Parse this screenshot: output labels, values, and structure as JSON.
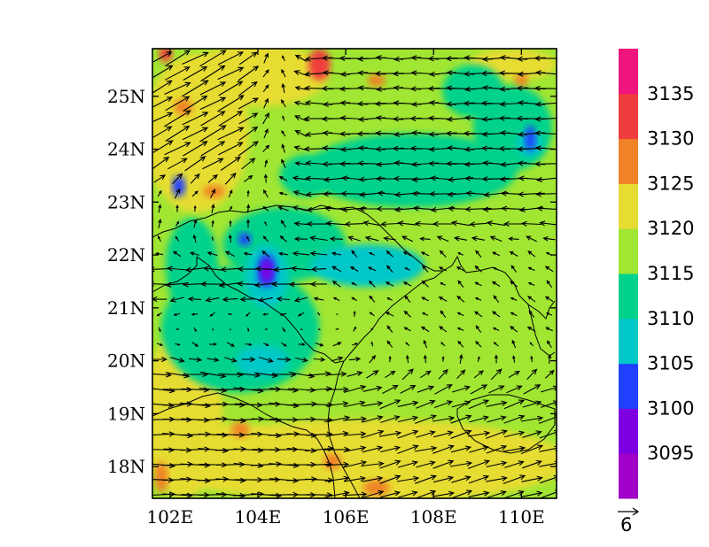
{
  "map": {
    "lat_ticks": [
      "25N",
      "24N",
      "23N",
      "22N",
      "21N",
      "20N",
      "19N",
      "18N"
    ],
    "lon_ticks": [
      "102E",
      "104E",
      "106E",
      "108E",
      "110E"
    ],
    "lon_range": [
      101.6,
      110.8
    ],
    "lat_range": [
      17.4,
      25.9
    ]
  },
  "colorbar": {
    "labels": [
      "3135",
      "3130",
      "3125",
      "3120",
      "3115",
      "3110",
      "3105",
      "3100",
      "3095"
    ],
    "colors": [
      "#a000c8",
      "#7d00e0",
      "#2040ff",
      "#00c8c8",
      "#00d28c",
      "#a0e632",
      "#e6dc32",
      "#f08228",
      "#f03c3c",
      "#f0147d"
    ]
  },
  "vector_ref": {
    "label": "6"
  },
  "field": {
    "type": "filled-contour",
    "background_level_color": "#a0e632",
    "patches": [
      {
        "lon": 102.3,
        "lat": 19.0,
        "rx": 0.9,
        "ry": 1.6,
        "color": "#e6dc32"
      },
      {
        "lon": 103.2,
        "lat": 18.2,
        "rx": 1.6,
        "ry": 0.6,
        "color": "#e6dc32"
      },
      {
        "lon": 106.5,
        "lat": 18.1,
        "rx": 4.6,
        "ry": 0.8,
        "color": "#e6dc32"
      },
      {
        "lon": 102.6,
        "lat": 24.3,
        "rx": 1.2,
        "ry": 1.5,
        "color": "#e6dc32"
      },
      {
        "lon": 104.0,
        "lat": 25.4,
        "rx": 1.6,
        "ry": 0.6,
        "color": "#e6dc32"
      },
      {
        "lon": 109.8,
        "lat": 25.6,
        "rx": 1.0,
        "ry": 0.3,
        "color": "#e6dc32"
      },
      {
        "lon": 103.6,
        "lat": 20.6,
        "rx": 1.8,
        "ry": 1.2,
        "color": "#00d28c"
      },
      {
        "lon": 104.6,
        "lat": 22.2,
        "rx": 1.4,
        "ry": 0.7,
        "color": "#00d28c"
      },
      {
        "lon": 107.5,
        "lat": 23.6,
        "rx": 2.4,
        "ry": 0.7,
        "color": "#00d28c"
      },
      {
        "lon": 109.8,
        "lat": 24.4,
        "rx": 0.9,
        "ry": 0.8,
        "color": "#00d28c"
      },
      {
        "lon": 108.9,
        "lat": 25.1,
        "rx": 0.7,
        "ry": 0.5,
        "color": "#00d28c"
      },
      {
        "lon": 105.1,
        "lat": 23.5,
        "rx": 0.6,
        "ry": 0.4,
        "color": "#00d28c"
      },
      {
        "lon": 102.5,
        "lat": 21.8,
        "rx": 0.6,
        "ry": 0.9,
        "color": "#00d28c"
      },
      {
        "lon": 106.5,
        "lat": 21.8,
        "rx": 1.3,
        "ry": 0.4,
        "color": "#00c8c8"
      },
      {
        "lon": 104.2,
        "lat": 21.6,
        "rx": 0.5,
        "ry": 0.6,
        "color": "#00c8c8"
      },
      {
        "lon": 104.1,
        "lat": 20.0,
        "rx": 0.6,
        "ry": 0.3,
        "color": "#00c8c8"
      },
      {
        "lon": 110.2,
        "lat": 24.1,
        "rx": 0.3,
        "ry": 0.25,
        "color": "#00c8c8"
      },
      {
        "lon": 104.2,
        "lat": 21.7,
        "rx": 0.22,
        "ry": 0.32,
        "color": "#2040ff"
      },
      {
        "lon": 104.2,
        "lat": 21.7,
        "rx": 0.14,
        "ry": 0.22,
        "color": "#7d00e0"
      },
      {
        "lon": 102.2,
        "lat": 23.3,
        "rx": 0.15,
        "ry": 0.2,
        "color": "#2040ff"
      },
      {
        "lon": 110.2,
        "lat": 24.2,
        "rx": 0.12,
        "ry": 0.25,
        "color": "#2040ff"
      },
      {
        "lon": 103.7,
        "lat": 22.3,
        "rx": 0.15,
        "ry": 0.12,
        "color": "#2040ff"
      },
      {
        "lon": 105.4,
        "lat": 25.6,
        "rx": 0.25,
        "ry": 0.3,
        "color": "#f03c3c"
      },
      {
        "lon": 101.9,
        "lat": 25.8,
        "rx": 0.15,
        "ry": 0.15,
        "color": "#f03c3c"
      },
      {
        "lon": 105.7,
        "lat": 18.1,
        "rx": 0.2,
        "ry": 0.15,
        "color": "#f08228"
      },
      {
        "lon": 106.7,
        "lat": 17.6,
        "rx": 0.3,
        "ry": 0.15,
        "color": "#f08228"
      },
      {
        "lon": 103.6,
        "lat": 18.7,
        "rx": 0.2,
        "ry": 0.15,
        "color": "#f08228"
      },
      {
        "lon": 110.0,
        "lat": 25.3,
        "rx": 0.15,
        "ry": 0.12,
        "color": "#f08228"
      },
      {
        "lon": 106.7,
        "lat": 25.3,
        "rx": 0.2,
        "ry": 0.12,
        "color": "#f08228"
      },
      {
        "lon": 103.0,
        "lat": 23.2,
        "rx": 0.25,
        "ry": 0.12,
        "color": "#f08228"
      },
      {
        "lon": 101.8,
        "lat": 17.8,
        "rx": 0.15,
        "ry": 0.3,
        "color": "#f08228"
      },
      {
        "lon": 102.3,
        "lat": 24.8,
        "rx": 0.2,
        "ry": 0.15,
        "color": "#f08228"
      }
    ]
  },
  "wind_regimes": [
    {
      "region": "north-west",
      "lon_max": 104.5,
      "lat_min": 22.5,
      "u": 4.5,
      "v": 2.5
    },
    {
      "region": "north",
      "lon_min": 104.5,
      "lat_min": 23.0,
      "u": -5.0,
      "v": 0.0
    },
    {
      "region": "central",
      "lat_min": 20.5,
      "lat_max": 23.0,
      "u": -4.0,
      "v": -0.2
    },
    {
      "region": "south-east",
      "lon_min": 106.0,
      "lat_max": 22.0,
      "u": 1.8,
      "v": 1.8
    },
    {
      "region": "south-west",
      "lon_max": 106.0,
      "lat_max": 20.5,
      "u": 5.0,
      "v": -0.5
    },
    {
      "region": "south",
      "lat_max": 19.0,
      "u": 5.5,
      "v": 0.3
    }
  ]
}
